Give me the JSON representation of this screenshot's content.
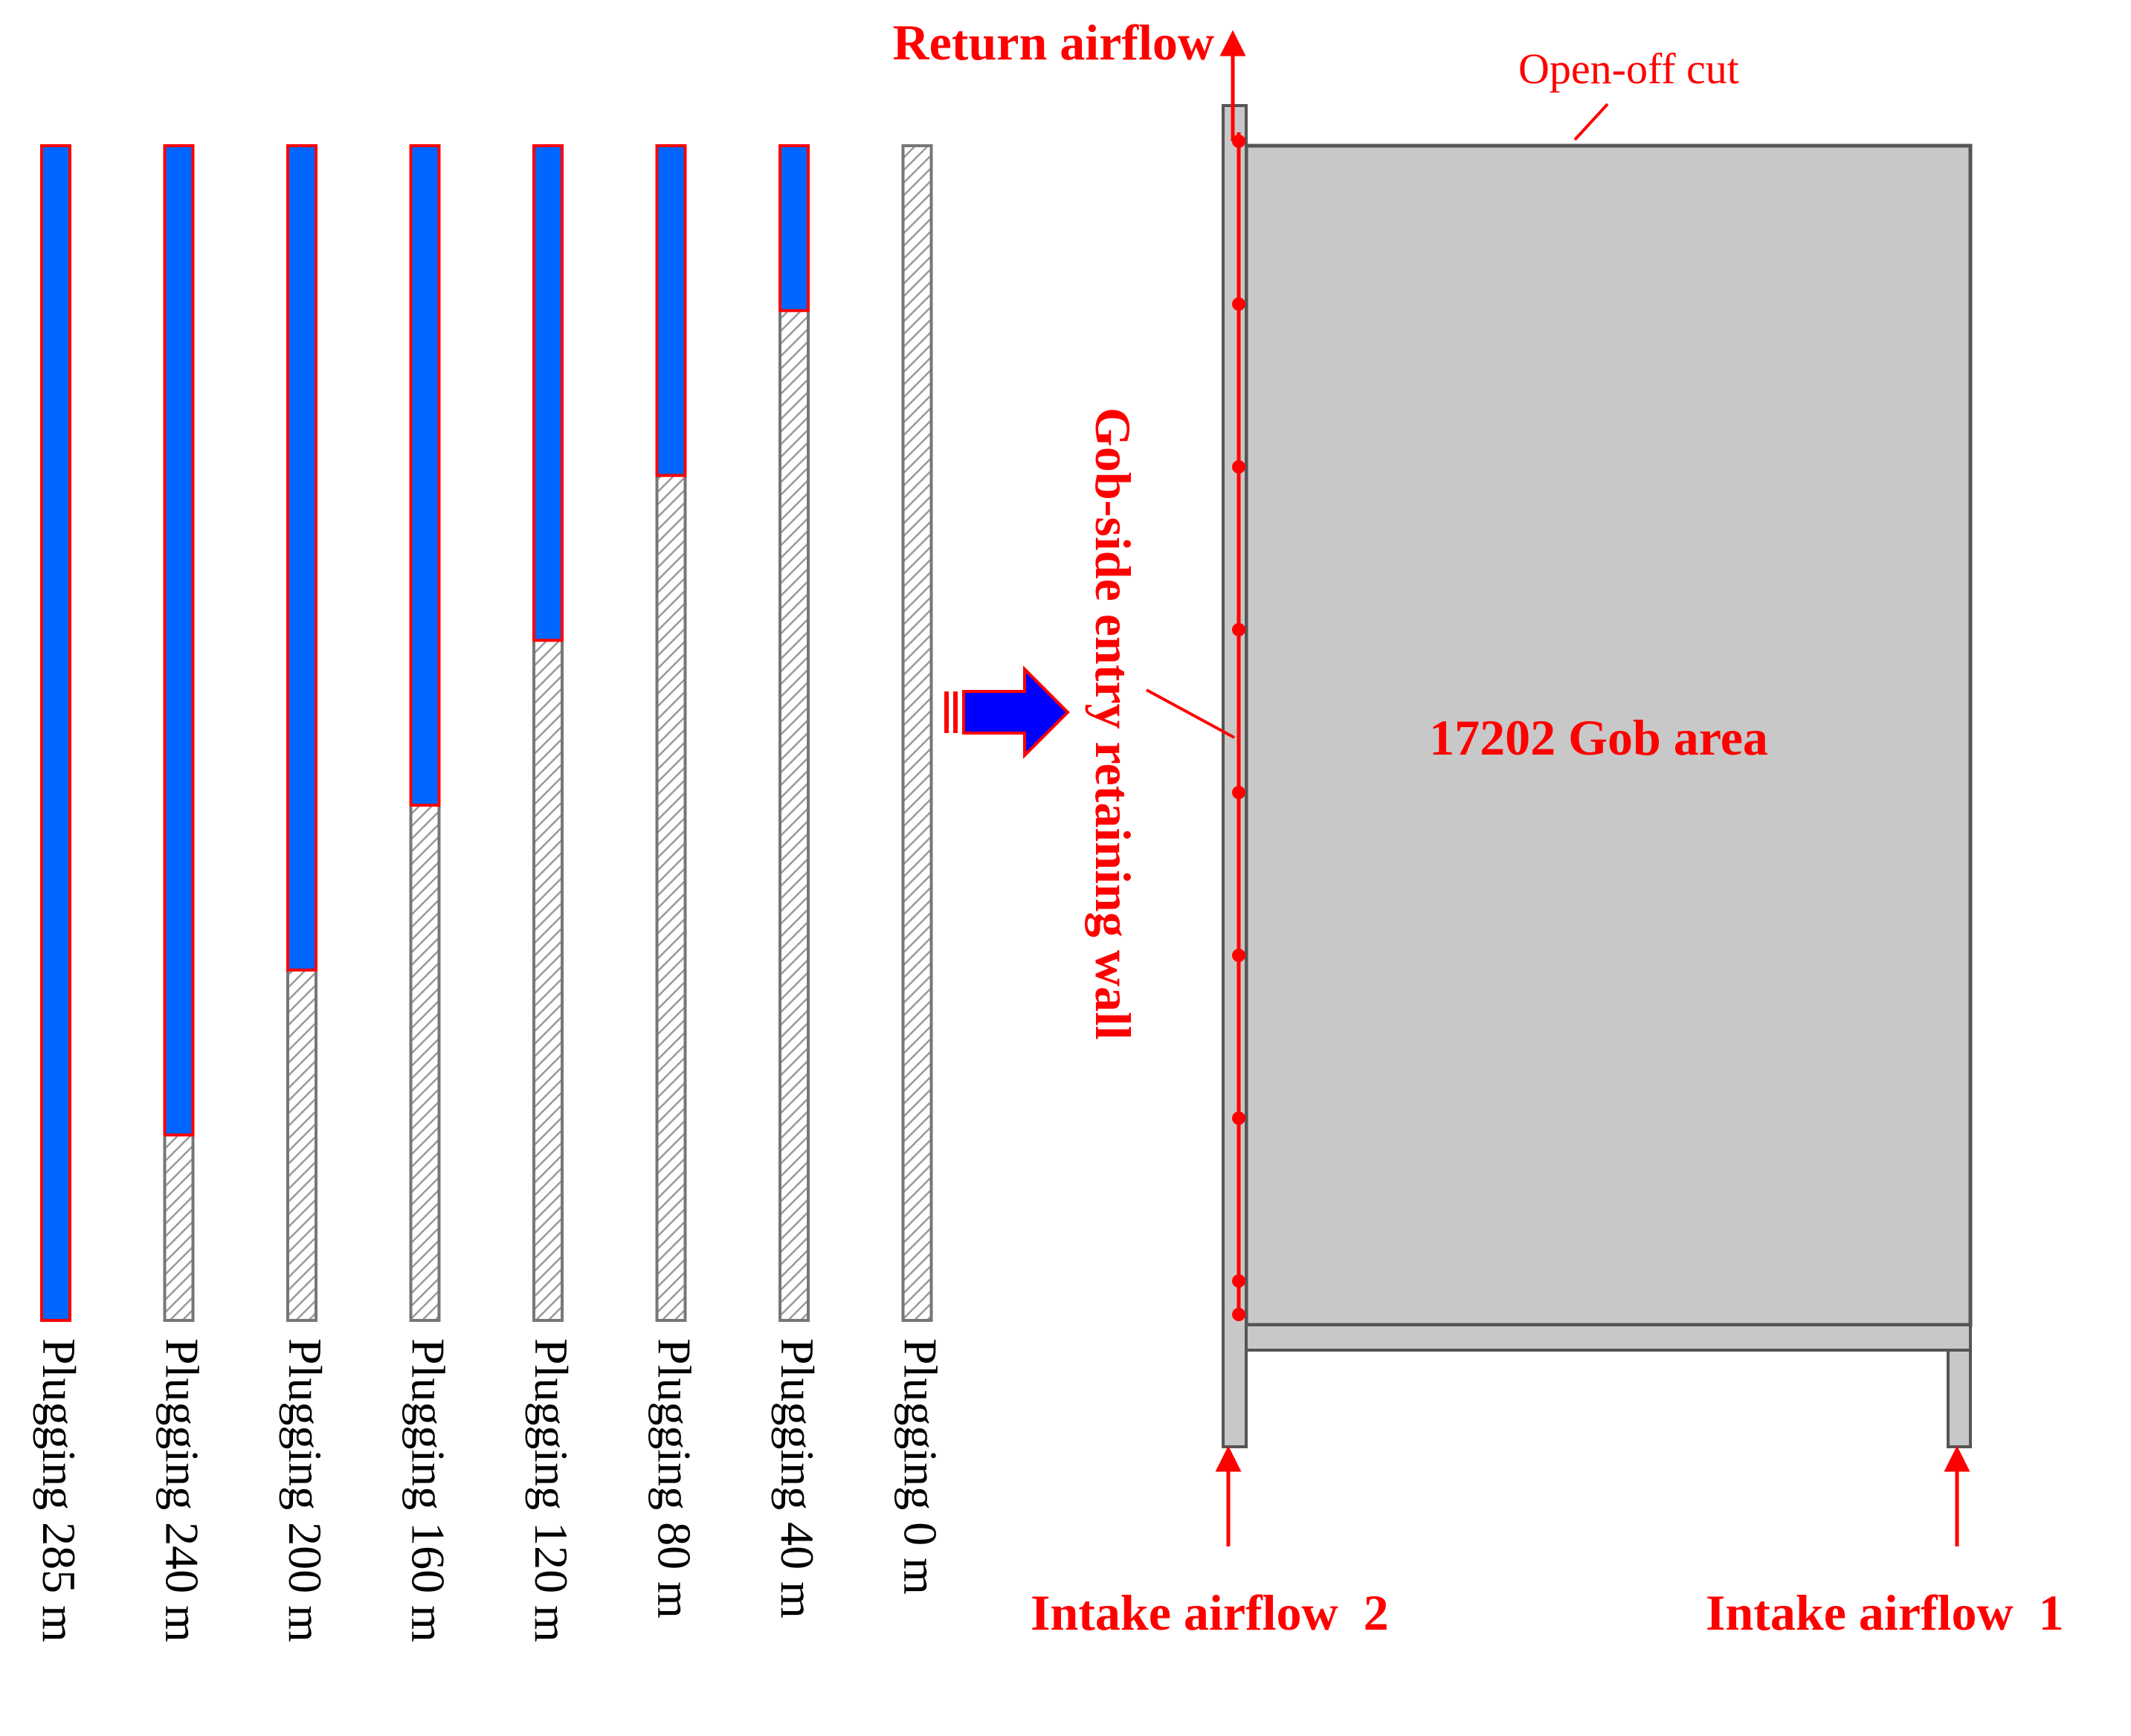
{
  "plugging_columns": [
    {
      "label": "Plugging 285 m",
      "plugged_m": 285
    },
    {
      "label": "Plugging 240 m",
      "plugged_m": 240
    },
    {
      "label": "Plugging 200 m",
      "plugged_m": 200
    },
    {
      "label": "Plugging 160 m",
      "plugged_m": 160
    },
    {
      "label": "Plugging 120 m",
      "plugged_m": 120
    },
    {
      "label": "Plugging 80 m",
      "plugged_m": 80
    },
    {
      "label": "Plugging 40 m",
      "plugged_m": 40
    },
    {
      "label": "Plugging 0 m",
      "plugged_m": 0
    }
  ],
  "total_length_m": 285,
  "labels": {
    "return_airflow": "Return airflow",
    "open_off_cut": "Open-off cut",
    "gob_side_entry": "Gob-side entry retaining wall",
    "gob_area": "17202 Gob area",
    "intake_2": "Intake airflow  2",
    "intake_1": "Intake airflow  1"
  },
  "colors": {
    "plugged_fill": "#0066ff",
    "plugged_stroke": "#ff0000",
    "annotation": "#ff0000",
    "gob_fill": "#c8c8c8",
    "outline": "#666666",
    "arrow_fill": "#0000ff"
  }
}
